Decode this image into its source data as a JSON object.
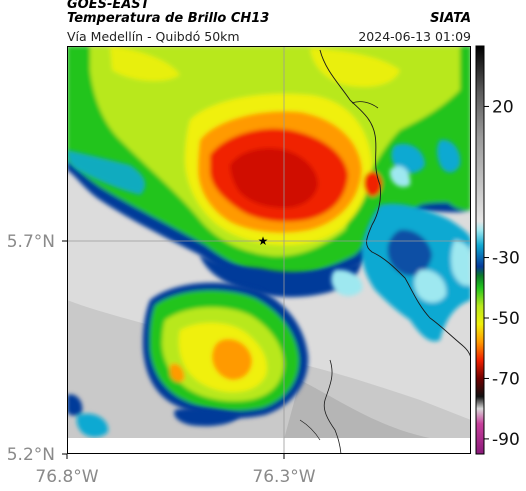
{
  "header": {
    "satellite": "GOES-EAST",
    "product": "Temperatura de Brillo CH13",
    "region": "Vía Medellín - Quibdó 50km",
    "source": "SIATA",
    "timestamp": "2024-06-13 01:09"
  },
  "map": {
    "lat_labels": [
      "5.7°N",
      "5.2°N"
    ],
    "lon_labels": [
      "76.8°W",
      "76.3°W"
    ],
    "marker_icon": "star-icon"
  },
  "colorbar": {
    "tick_labels": [
      "20",
      "-30",
      "-50",
      "-70",
      "-90"
    ],
    "ticks_values": [
      20,
      -30,
      -50,
      -70,
      -90
    ],
    "range": [
      -95,
      40
    ],
    "stops": [
      {
        "v": 40,
        "c": "#000000"
      },
      {
        "v": 25,
        "c": "#5a5a5a"
      },
      {
        "v": 10,
        "c": "#9a9a9a"
      },
      {
        "v": -18,
        "c": "#e6e6e6"
      },
      {
        "v": -21,
        "c": "#9ee8f0"
      },
      {
        "v": -26,
        "c": "#10a9d2"
      },
      {
        "v": -33,
        "c": "#063a9a"
      },
      {
        "v": -36,
        "c": "#0c7a2a"
      },
      {
        "v": -40,
        "c": "#22c41e"
      },
      {
        "v": -46,
        "c": "#b8e81e"
      },
      {
        "v": -52,
        "c": "#f0f00c"
      },
      {
        "v": -58,
        "c": "#ff9a00"
      },
      {
        "v": -64,
        "c": "#f02000"
      },
      {
        "v": -70,
        "c": "#700000"
      },
      {
        "v": -76,
        "c": "#111111"
      },
      {
        "v": -80,
        "c": "#d8d8d8"
      },
      {
        "v": -85,
        "c": "#c8409c"
      },
      {
        "v": -95,
        "c": "#8a1a7a"
      }
    ]
  }
}
